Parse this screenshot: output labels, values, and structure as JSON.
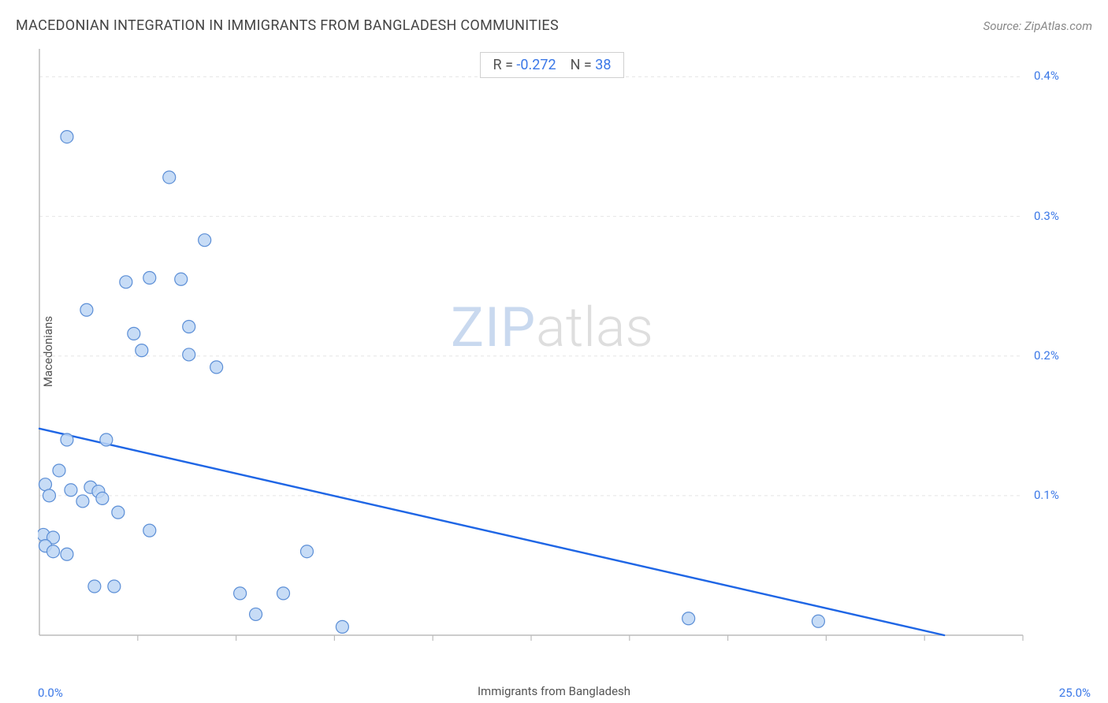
{
  "header": {
    "title": "MACEDONIAN INTEGRATION IN IMMIGRANTS FROM BANGLADESH COMMUNITIES",
    "source": "Source: ZipAtlas.com"
  },
  "stats": {
    "r_label": "R =",
    "r_value": "-0.272",
    "n_label": "N =",
    "n_value": "38"
  },
  "axes": {
    "xlabel": "Immigrants from Bangladesh",
    "ylabel": "Macedonians",
    "xmin_label": "0.0%",
    "xmax_label": "25.0%",
    "xlim": [
      0,
      25
    ],
    "ylim": [
      0,
      0.42
    ],
    "yticks": [
      0.1,
      0.2,
      0.3,
      0.4
    ],
    "ytick_labels": [
      "0.1%",
      "0.2%",
      "0.3%",
      "0.4%"
    ]
  },
  "chart": {
    "type": "scatter",
    "background_color": "#ffffff",
    "grid_color": "#e5e5e5",
    "axis_color": "#bcbcbc",
    "tick_color": "#bcbcbc",
    "marker_fill": "#bdd6f4",
    "marker_stroke": "#5b8ed6",
    "marker_radius": 8,
    "marker_stroke_width": 1.2,
    "trend_color": "#1f66e5",
    "trend_width": 2.4,
    "trend_x1": 0.0,
    "trend_y1": 0.148,
    "trend_x2": 23.0,
    "trend_y2": 0.0,
    "points": [
      [
        0.7,
        0.357
      ],
      [
        3.3,
        0.328
      ],
      [
        4.2,
        0.283
      ],
      [
        2.2,
        0.253
      ],
      [
        2.8,
        0.256
      ],
      [
        3.6,
        0.255
      ],
      [
        1.2,
        0.233
      ],
      [
        2.4,
        0.216
      ],
      [
        3.8,
        0.221
      ],
      [
        2.6,
        0.204
      ],
      [
        3.8,
        0.201
      ],
      [
        4.5,
        0.192
      ],
      [
        0.7,
        0.14
      ],
      [
        1.7,
        0.14
      ],
      [
        0.5,
        0.118
      ],
      [
        0.15,
        0.108
      ],
      [
        0.25,
        0.1
      ],
      [
        0.8,
        0.104
      ],
      [
        1.3,
        0.106
      ],
      [
        1.5,
        0.103
      ],
      [
        1.6,
        0.098
      ],
      [
        1.1,
        0.096
      ],
      [
        2.0,
        0.088
      ],
      [
        0.1,
        0.072
      ],
      [
        0.35,
        0.07
      ],
      [
        0.15,
        0.064
      ],
      [
        0.35,
        0.06
      ],
      [
        0.7,
        0.058
      ],
      [
        2.8,
        0.075
      ],
      [
        6.8,
        0.06
      ],
      [
        1.4,
        0.035
      ],
      [
        1.9,
        0.035
      ],
      [
        5.1,
        0.03
      ],
      [
        6.2,
        0.03
      ],
      [
        5.5,
        0.015
      ],
      [
        7.7,
        0.006
      ],
      [
        16.5,
        0.012
      ],
      [
        19.8,
        0.01
      ]
    ]
  },
  "watermark": {
    "zip": "ZIP",
    "atlas": "atlas"
  }
}
